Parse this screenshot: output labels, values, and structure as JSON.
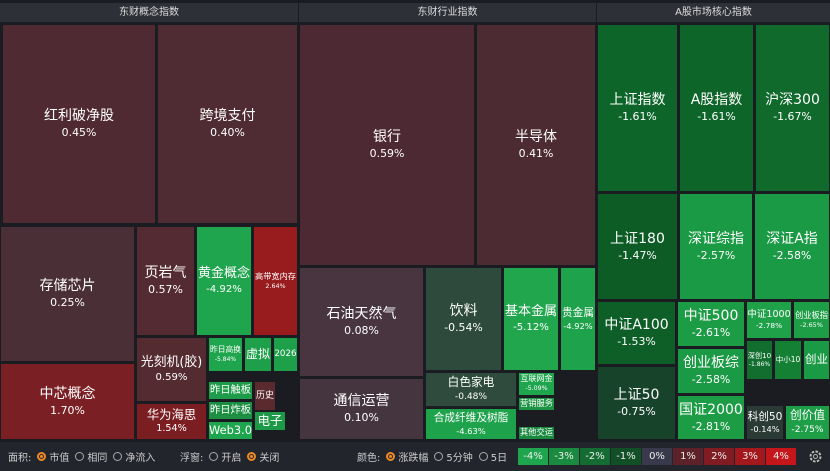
{
  "panels": [
    {
      "title": "东财概念指数",
      "tiles": [
        {
          "name": "红利破净股",
          "change": "0.45%",
          "color": "#4f2a33"
        },
        {
          "name": "跨境支付",
          "change": "0.40%",
          "color": "#4f2b34"
        },
        {
          "name": "存储芯片",
          "change": "0.25%",
          "color": "#4b2f37"
        },
        {
          "name": "页岩气",
          "change": "0.57%",
          "color": "#552b33"
        },
        {
          "name": "黄金概念",
          "change": "-4.92%",
          "color": "#1fa54d"
        },
        {
          "name": "高带宽内存",
          "change": "2.64%",
          "color": "#981b1e"
        },
        {
          "name": "光刻机(胶)",
          "change": "0.59%",
          "color": "#552b32"
        },
        {
          "name": "昨日高换",
          "change": "-5.84%",
          "color": "#1fa54d"
        },
        {
          "name": "虚拟",
          "color": "#1e9f4a"
        },
        {
          "name": "2026",
          "color": "#1e9f4a"
        },
        {
          "name": "中芯概念",
          "change": "1.70%",
          "color": "#7a1f23"
        },
        {
          "name": "华为海思",
          "change": "1.54%",
          "color": "#7b1e22"
        },
        {
          "name": "昨日触板",
          "color": "#1f9c49"
        },
        {
          "name": "历史",
          "color": "#5a2a2f"
        },
        {
          "name": "昨日炸板",
          "color": "#1c8f43"
        },
        {
          "name": "Web3.0",
          "color": "#1fa54d"
        },
        {
          "name": "电子",
          "color": "#1c9a47"
        }
      ]
    },
    {
      "title": "东财行业指数",
      "tiles": [
        {
          "name": "银行",
          "change": "0.59%",
          "color": "#4d2a33"
        },
        {
          "name": "半导体",
          "change": "0.41%",
          "color": "#4d2b33"
        },
        {
          "name": "石油天然气",
          "change": "0.08%",
          "color": "#483540"
        },
        {
          "name": "饮料",
          "change": "-0.54%",
          "color": "#2d4a3c"
        },
        {
          "name": "基本金属",
          "change": "-5.12%",
          "color": "#21a64e"
        },
        {
          "name": "贵金属",
          "change": "-4.92%",
          "color": "#1fa24c"
        },
        {
          "name": "通信运营",
          "change": "0.10%",
          "color": "#45353f"
        },
        {
          "name": "白色家电",
          "change": "-0.48%",
          "color": "#2e4b3d"
        },
        {
          "name": "互联网金",
          "change": "-5.09%",
          "color": "#1fa54d"
        },
        {
          "name": "合成纤维及树脂",
          "change": "-4.63%",
          "color": "#1fa24c"
        },
        {
          "name": "营销服务",
          "color": "#1c9444"
        },
        {
          "name": "其他交运",
          "color": "#1a8a40"
        }
      ]
    },
    {
      "title": "A股市场核心指数",
      "tiles": [
        {
          "name": "上证指数",
          "change": "-1.61%",
          "color": "#0e6529"
        },
        {
          "name": "A股指数",
          "change": "-1.61%",
          "color": "#0e6529"
        },
        {
          "name": "沪深300",
          "change": "-1.67%",
          "color": "#0f6a2b"
        },
        {
          "name": "上证180",
          "change": "-1.47%",
          "color": "#0d5c26"
        },
        {
          "name": "深证综指",
          "change": "-2.57%",
          "color": "#1a9a44"
        },
        {
          "name": "深证A指",
          "change": "-2.58%",
          "color": "#1a9a44"
        },
        {
          "name": "中证A100",
          "change": "-1.53%",
          "color": "#0d5f27"
        },
        {
          "name": "中证500",
          "change": "-2.61%",
          "color": "#1c9c45"
        },
        {
          "name": "中证1000",
          "change": "-2.78%",
          "color": "#1fa14a"
        },
        {
          "name": "创业板指",
          "change": "-2.65%",
          "color": "#1d9d46"
        },
        {
          "name": "创业板综",
          "change": "-2.58%",
          "color": "#1a9a44"
        },
        {
          "name": "深创10",
          "change": "-1.86%",
          "color": "#116e2e"
        },
        {
          "name": "中小10",
          "color": "#138034"
        },
        {
          "name": "创业",
          "color": "#1a9a44"
        },
        {
          "name": "上证50",
          "change": "-0.75%",
          "color": "#17432a"
        },
        {
          "name": "国证2000",
          "change": "-2.81%",
          "color": "#1c9c45"
        },
        {
          "name": "科创50",
          "change": "-0.14%",
          "color": "#2a3b35"
        },
        {
          "name": "创价值",
          "change": "-2.75%",
          "color": "#1d9e47"
        }
      ]
    }
  ],
  "toolbar": {
    "groups": [
      {
        "label": "面积:",
        "options": [
          "市值",
          "相同",
          "净流入"
        ],
        "selected": 0
      },
      {
        "label": "浮窗:",
        "options": [
          "开启",
          "关闭"
        ],
        "selected": 1
      },
      {
        "label": "颜色:",
        "options": [
          "涨跌幅",
          "5分钟",
          "5日"
        ],
        "selected": 0
      }
    ],
    "legend": [
      {
        "label": "-4%",
        "color": "#1fa54d"
      },
      {
        "label": "-3%",
        "color": "#1a8a40"
      },
      {
        "label": "-2%",
        "color": "#156c33"
      },
      {
        "label": "-1%",
        "color": "#114f27"
      },
      {
        "label": "0%",
        "color": "#38394a"
      },
      {
        "label": "1%",
        "color": "#5c2129"
      },
      {
        "label": "2%",
        "color": "#801c22"
      },
      {
        "label": "3%",
        "color": "#a3181c"
      },
      {
        "label": "4%",
        "color": "#c5161b"
      }
    ]
  }
}
